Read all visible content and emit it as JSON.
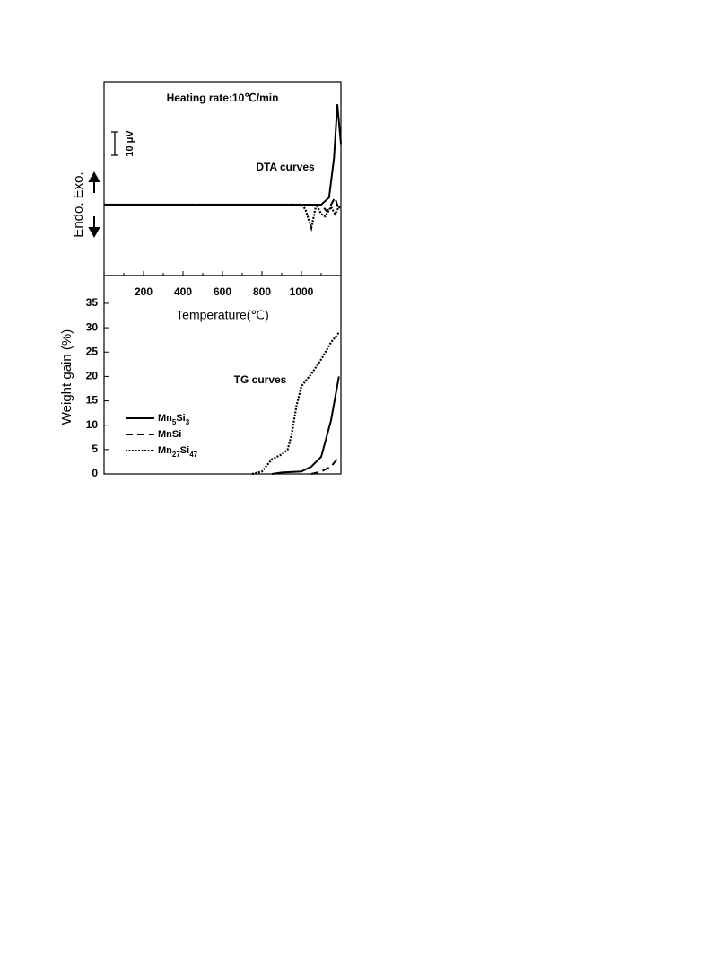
{
  "chart_data": [
    {
      "type": "line",
      "title": "Heating rate:10℃/min",
      "annotation": "DTA curves",
      "ylabel": "Endo. Exo.",
      "scale_bar": {
        "value": 10,
        "label": "10 μV"
      },
      "xlim": [
        0,
        1200
      ],
      "ylim": [
        -30.4,
        52.7
      ],
      "series": [
        {
          "color": "#000000",
          "dash": "solid",
          "x": [
            0,
            1100,
            1140,
            1165,
            1182,
            1200
          ],
          "values": [
            0,
            0,
            3,
            20,
            43,
            26
          ]
        },
        {
          "color": "#000000",
          "dash": "dashed",
          "x": [
            0,
            1100,
            1130,
            1150,
            1170,
            1185,
            1200
          ],
          "values": [
            0,
            0,
            -3,
            0,
            3,
            -1,
            -2
          ]
        },
        {
          "color": "#000000",
          "dash": "dotted",
          "x": [
            0,
            1000,
            1020,
            1050,
            1075,
            1100,
            1120,
            1150,
            1170,
            1190,
            1200
          ],
          "values": [
            0,
            0,
            -2,
            -10,
            0,
            -4,
            -5,
            -1,
            -4,
            -1,
            -2
          ]
        }
      ]
    },
    {
      "type": "line",
      "annotation": "TG curves",
      "xlabel": "Temperature(℃)",
      "ylabel": "Weight gain (%)",
      "xlim": [
        0,
        1200
      ],
      "ylim": [
        0,
        40.7
      ],
      "xticks": [
        200,
        400,
        600,
        800,
        1000
      ],
      "xticks_minor": [
        100,
        300,
        500,
        700,
        900,
        1100
      ],
      "yticks": [
        0,
        5,
        10,
        15,
        20,
        25,
        30,
        35
      ],
      "series": [
        {
          "name": "Mn5Si3",
          "color": "#000000",
          "dash": "solid",
          "x": [
            850,
            900,
            1000,
            1050,
            1100,
            1150,
            1190
          ],
          "values": [
            0,
            0.3,
            0.5,
            1.5,
            3.5,
            11,
            20
          ]
        },
        {
          "name": "MnSi",
          "color": "#000000",
          "dash": "dashed",
          "x": [
            1050,
            1100,
            1150,
            1190
          ],
          "values": [
            0,
            0.5,
            1.5,
            3.5
          ]
        },
        {
          "name": "Mn27Si47",
          "color": "#000000",
          "dash": "dotted",
          "x": [
            750,
            800,
            850,
            900,
            930,
            950,
            975,
            1000,
            1050,
            1100,
            1150,
            1190
          ],
          "values": [
            0,
            0.5,
            3,
            4,
            5,
            8,
            14,
            18,
            20.5,
            23.5,
            27,
            29
          ]
        }
      ]
    }
  ]
}
